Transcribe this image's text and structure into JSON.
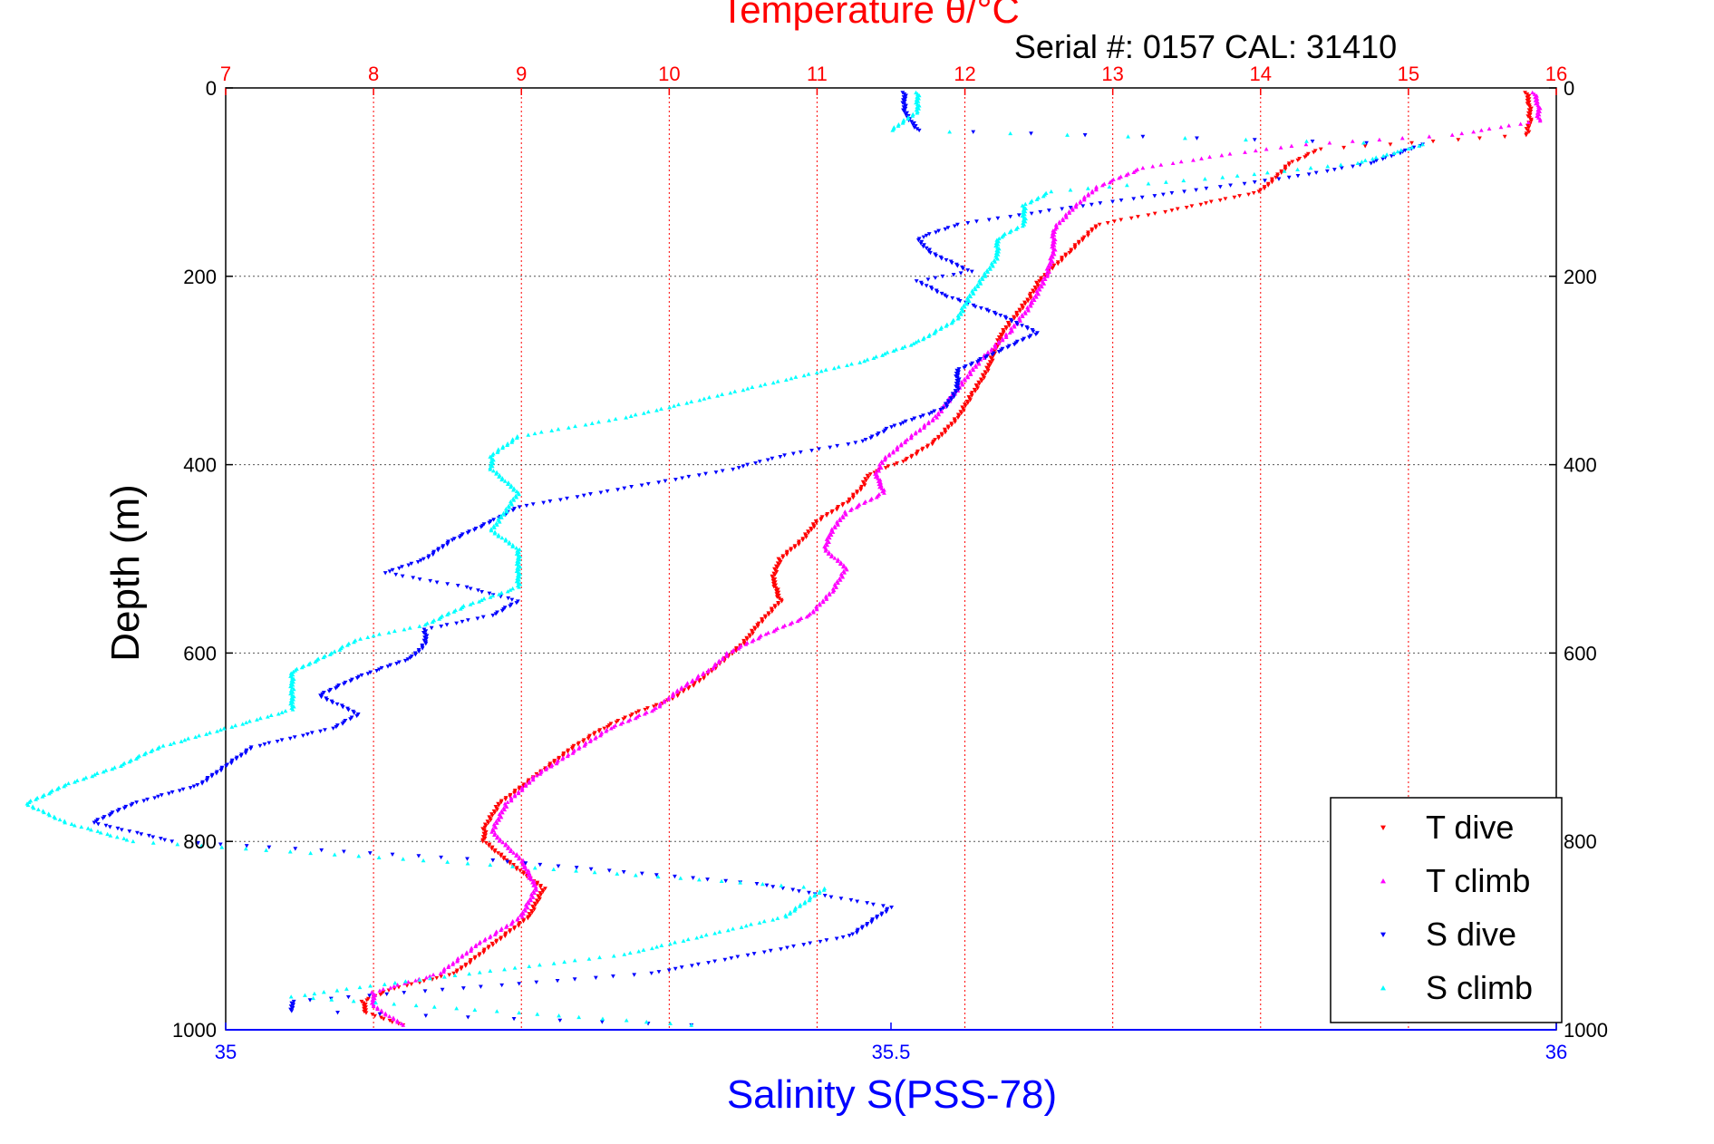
{
  "chart_data": {
    "type": "scatter",
    "title": "Temperature θ/°C",
    "subtitle": "Serial #: 0157  CAL: 31410",
    "xlabel": "Salinity S(PSS-78)",
    "ylabel": "Depth (m)",
    "x_top_label": "Temperature θ/°C",
    "temperature_axis": {
      "range": [
        7,
        16
      ],
      "ticks": [
        "7",
        "8",
        "9",
        "10",
        "11",
        "12",
        "13",
        "14",
        "15",
        "16"
      ],
      "color": "#ff0000"
    },
    "salinity_axis": {
      "range": [
        35,
        36
      ],
      "ticks": [
        "35",
        "35.5",
        "36"
      ],
      "color": "#0000ff"
    },
    "depth_axis": {
      "range": [
        0,
        1000
      ],
      "ticks": [
        "0",
        "200",
        "400",
        "600",
        "800",
        "1000"
      ],
      "reversed": true
    },
    "grid": true,
    "legend_position": "bottom-right",
    "series": [
      {
        "name": "T dive",
        "axis": "temperature",
        "color": "#ff0000",
        "marker": "triangle-down",
        "points": [
          [
            15.8,
            5
          ],
          [
            15.82,
            20
          ],
          [
            15.82,
            35
          ],
          [
            15.8,
            50
          ],
          [
            14.4,
            65
          ],
          [
            14.2,
            80
          ],
          [
            14.1,
            95
          ],
          [
            14.0,
            110
          ],
          [
            13.4,
            130
          ],
          [
            12.9,
            145
          ],
          [
            12.8,
            160
          ],
          [
            12.7,
            175
          ],
          [
            12.6,
            190
          ],
          [
            12.5,
            205
          ],
          [
            12.45,
            220
          ],
          [
            12.35,
            240
          ],
          [
            12.25,
            260
          ],
          [
            12.2,
            280
          ],
          [
            12.15,
            300
          ],
          [
            12.05,
            325
          ],
          [
            11.95,
            350
          ],
          [
            11.8,
            375
          ],
          [
            11.6,
            395
          ],
          [
            11.35,
            410
          ],
          [
            11.3,
            425
          ],
          [
            11.2,
            440
          ],
          [
            11.0,
            460
          ],
          [
            10.9,
            480
          ],
          [
            10.75,
            500
          ],
          [
            10.7,
            520
          ],
          [
            10.75,
            545
          ],
          [
            10.6,
            570
          ],
          [
            10.5,
            590
          ],
          [
            10.35,
            610
          ],
          [
            10.2,
            630
          ],
          [
            10.0,
            650
          ],
          [
            9.75,
            665
          ],
          [
            9.55,
            680
          ],
          [
            9.35,
            700
          ],
          [
            9.1,
            730
          ],
          [
            8.85,
            760
          ],
          [
            8.75,
            785
          ],
          [
            8.75,
            800
          ],
          [
            8.9,
            820
          ],
          [
            9.15,
            850
          ],
          [
            9.05,
            880
          ],
          [
            8.8,
            910
          ],
          [
            8.55,
            940
          ],
          [
            8.1,
            958
          ],
          [
            7.93,
            970
          ],
          [
            7.95,
            982
          ],
          [
            8.2,
            995
          ]
        ]
      },
      {
        "name": "T climb",
        "axis": "temperature",
        "color": "#ff00ff",
        "marker": "triangle-up",
        "points": [
          [
            15.85,
            5
          ],
          [
            15.88,
            20
          ],
          [
            15.88,
            35
          ],
          [
            15.3,
            50
          ],
          [
            14.3,
            60
          ],
          [
            13.8,
            70
          ],
          [
            13.2,
            85
          ],
          [
            12.9,
            105
          ],
          [
            12.75,
            125
          ],
          [
            12.6,
            150
          ],
          [
            12.6,
            175
          ],
          [
            12.55,
            200
          ],
          [
            12.45,
            230
          ],
          [
            12.3,
            260
          ],
          [
            12.1,
            290
          ],
          [
            11.95,
            320
          ],
          [
            11.8,
            350
          ],
          [
            11.6,
            375
          ],
          [
            11.45,
            395
          ],
          [
            11.4,
            410
          ],
          [
            11.45,
            430
          ],
          [
            11.2,
            450
          ],
          [
            11.1,
            470
          ],
          [
            11.05,
            490
          ],
          [
            11.2,
            510
          ],
          [
            11.1,
            535
          ],
          [
            10.95,
            560
          ],
          [
            10.65,
            580
          ],
          [
            10.4,
            600
          ],
          [
            10.3,
            615
          ],
          [
            10.1,
            635
          ],
          [
            9.9,
            660
          ],
          [
            9.6,
            680
          ],
          [
            9.4,
            700
          ],
          [
            9.1,
            730
          ],
          [
            8.9,
            760
          ],
          [
            8.8,
            790
          ],
          [
            9.0,
            820
          ],
          [
            9.1,
            850
          ],
          [
            9.0,
            880
          ],
          [
            8.7,
            910
          ],
          [
            8.45,
            940
          ],
          [
            8.0,
            960
          ],
          [
            8.0,
            975
          ],
          [
            8.2,
            995
          ]
        ]
      },
      {
        "name": "S dive",
        "axis": "salinity",
        "color": "#0000ff",
        "marker": "triangle-down",
        "points": [
          [
            35.51,
            5
          ],
          [
            35.51,
            25
          ],
          [
            35.52,
            45
          ],
          [
            35.9,
            60
          ],
          [
            35.86,
            80
          ],
          [
            35.8,
            95
          ],
          [
            35.72,
            110
          ],
          [
            35.62,
            130
          ],
          [
            35.55,
            145
          ],
          [
            35.52,
            160
          ],
          [
            35.53,
            175
          ],
          [
            35.56,
            195
          ],
          [
            35.52,
            205
          ],
          [
            35.54,
            220
          ],
          [
            35.58,
            240
          ],
          [
            35.61,
            260
          ],
          [
            35.58,
            280
          ],
          [
            35.55,
            300
          ],
          [
            35.55,
            320
          ],
          [
            35.54,
            340
          ],
          [
            35.5,
            360
          ],
          [
            35.48,
            375
          ],
          [
            35.42,
            390
          ],
          [
            35.38,
            405
          ],
          [
            35.3,
            425
          ],
          [
            35.22,
            445
          ],
          [
            35.2,
            460
          ],
          [
            35.17,
            480
          ],
          [
            35.15,
            500
          ],
          [
            35.12,
            515
          ],
          [
            35.18,
            530
          ],
          [
            35.22,
            545
          ],
          [
            35.2,
            560
          ],
          [
            35.15,
            575
          ],
          [
            35.15,
            590
          ],
          [
            35.14,
            605
          ],
          [
            35.1,
            625
          ],
          [
            35.07,
            645
          ],
          [
            35.1,
            665
          ],
          [
            35.08,
            680
          ],
          [
            35.02,
            700
          ],
          [
            35.0,
            720
          ],
          [
            34.98,
            740
          ],
          [
            34.93,
            760
          ],
          [
            34.9,
            780
          ],
          [
            34.96,
            800
          ],
          [
            35.2,
            820
          ],
          [
            35.4,
            845
          ],
          [
            35.5,
            870
          ],
          [
            35.47,
            900
          ],
          [
            35.32,
            940
          ],
          [
            35.05,
            970
          ],
          [
            35.05,
            980
          ],
          [
            35.35,
            995
          ]
        ]
      },
      {
        "name": "S climb",
        "axis": "salinity",
        "color": "#00ffff",
        "marker": "triangle-up",
        "points": [
          [
            35.52,
            5
          ],
          [
            35.52,
            25
          ],
          [
            35.5,
            45
          ],
          [
            35.9,
            60
          ],
          [
            35.85,
            80
          ],
          [
            35.75,
            95
          ],
          [
            35.62,
            110
          ],
          [
            35.6,
            125
          ],
          [
            35.6,
            145
          ],
          [
            35.58,
            160
          ],
          [
            35.58,
            180
          ],
          [
            35.57,
            200
          ],
          [
            35.56,
            220
          ],
          [
            35.55,
            245
          ],
          [
            35.52,
            270
          ],
          [
            35.48,
            290
          ],
          [
            35.42,
            310
          ],
          [
            35.36,
            330
          ],
          [
            35.3,
            350
          ],
          [
            35.22,
            370
          ],
          [
            35.2,
            390
          ],
          [
            35.2,
            405
          ],
          [
            35.22,
            430
          ],
          [
            35.21,
            450
          ],
          [
            35.2,
            470
          ],
          [
            35.22,
            490
          ],
          [
            35.22,
            510
          ],
          [
            35.22,
            530
          ],
          [
            35.18,
            550
          ],
          [
            35.15,
            570
          ],
          [
            35.1,
            585
          ],
          [
            35.08,
            600
          ],
          [
            35.05,
            620
          ],
          [
            35.05,
            640
          ],
          [
            35.05,
            660
          ],
          [
            35.0,
            680
          ],
          [
            34.95,
            700
          ],
          [
            34.92,
            720
          ],
          [
            34.88,
            740
          ],
          [
            34.85,
            760
          ],
          [
            34.88,
            780
          ],
          [
            34.93,
            800
          ],
          [
            35.2,
            825
          ],
          [
            35.45,
            850
          ],
          [
            35.42,
            880
          ],
          [
            35.3,
            920
          ],
          [
            35.1,
            955
          ],
          [
            35.05,
            965
          ],
          [
            35.25,
            985
          ],
          [
            35.35,
            995
          ]
        ]
      }
    ]
  }
}
